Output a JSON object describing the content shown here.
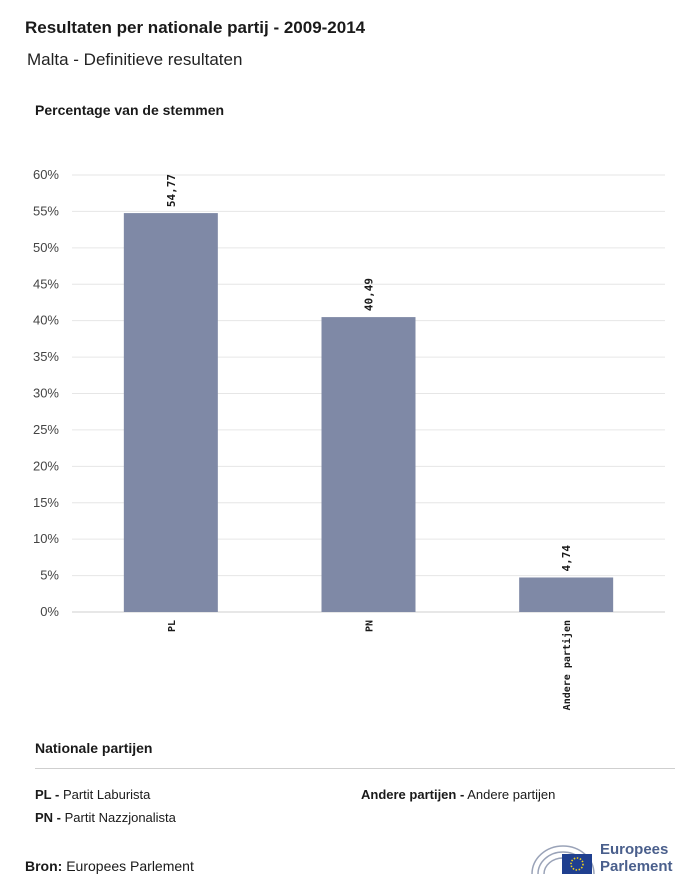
{
  "header": {
    "title": "Resultaten per nationale partij - 2009-2014",
    "subtitle": "Malta - Definitieve resultaten"
  },
  "chart_data": {
    "type": "bar",
    "ylabel": "Percentage van de stemmen",
    "categories": [
      "PL",
      "PN",
      "Andere partijen"
    ],
    "values": [
      54.77,
      40.49,
      4.74
    ],
    "value_labels": [
      "54,77",
      "40,49",
      "4,74"
    ],
    "ylim": [
      0,
      60
    ],
    "yticks": [
      "0%",
      "5%",
      "10%",
      "15%",
      "20%",
      "25%",
      "30%",
      "35%",
      "40%",
      "45%",
      "50%",
      "55%",
      "60%"
    ],
    "grid": true,
    "bar_color": "#7f89a6"
  },
  "legend": {
    "title": "Nationale partijen",
    "items": [
      {
        "abbr": "PL -",
        "name": "Partit Laburista"
      },
      {
        "abbr": "PN -",
        "name": "Partit Nazzjonalista"
      },
      {
        "abbr": "Andere partijen -",
        "name": "Andere partijen"
      }
    ]
  },
  "footer": {
    "source_label": "Bron:",
    "source_value": "Europees Parlement",
    "logo_line1": "Europees",
    "logo_line2": "Parlement"
  }
}
